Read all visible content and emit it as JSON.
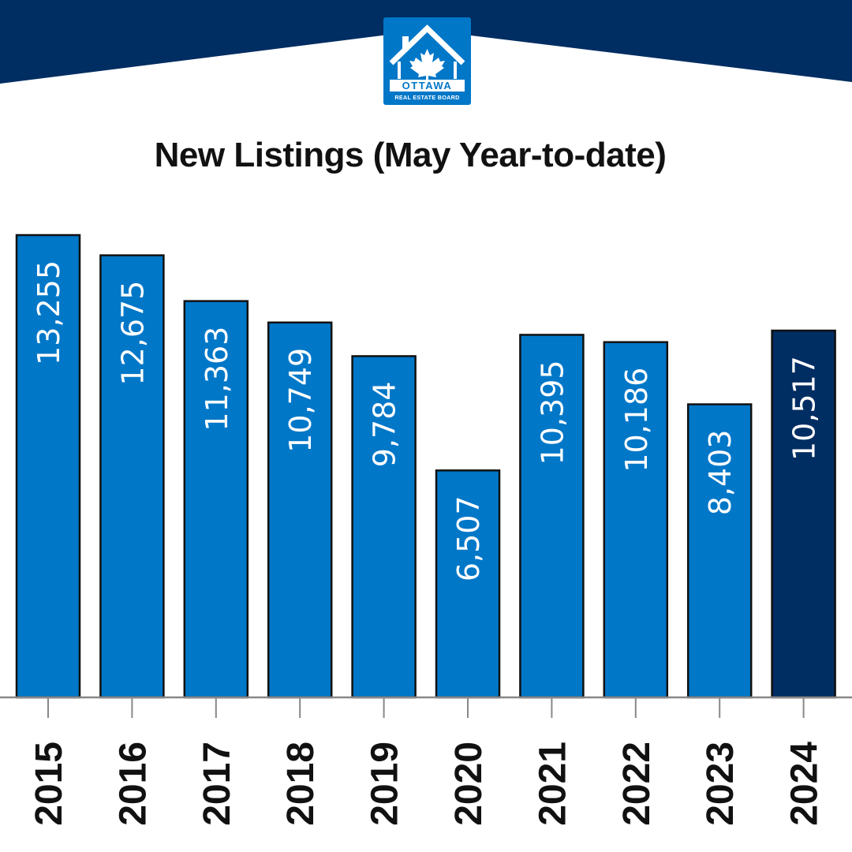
{
  "brand": {
    "logo_text": "OTTAWA",
    "logo_subtext": "REAL ESTATE BOARD",
    "header_color": "#002d62",
    "logo_color": "#0177c8"
  },
  "chart_data": {
    "type": "bar",
    "title": "New Listings (May Year-to-date)",
    "xlabel": "",
    "ylabel": "",
    "categories": [
      "2015",
      "2016",
      "2017",
      "2018",
      "2019",
      "2020",
      "2021",
      "2022",
      "2023",
      "2024"
    ],
    "values": [
      13255,
      12675,
      11363,
      10749,
      9784,
      6507,
      10395,
      10186,
      8403,
      10517
    ],
    "value_labels": [
      "13,255",
      "12,675",
      "11,363",
      "10,749",
      "9,784",
      "6,507",
      "10,395",
      "10,186",
      "8,403",
      "10,517"
    ],
    "ylim": [
      0,
      13255
    ],
    "grid": false,
    "legend": "none",
    "colors": {
      "bar": "#0177c8",
      "highlight_bar": "#002d62",
      "highlight_category": "2024",
      "bar_outline": "#111111",
      "axis": "#888888"
    }
  }
}
